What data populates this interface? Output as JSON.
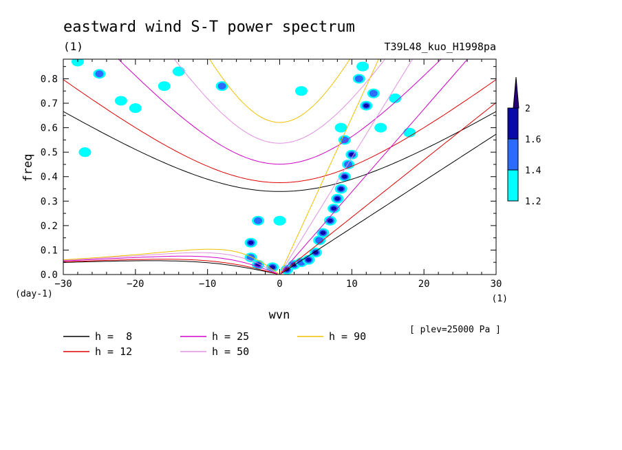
{
  "chart_data": {
    "type": "heatmap",
    "title": "eastward wind S-T power spectrum",
    "subtitle": "(1)",
    "run_label": "T39L48_kuo_H1998pa",
    "xlabel": "wvn",
    "ylabel": "freq",
    "x_unit": "(1)",
    "y_unit": "(day-1)",
    "level_note": "[ plev=25000 Pa ]",
    "xlim": [
      -30,
      30
    ],
    "ylim": [
      0,
      0.88
    ],
    "x_ticks": [
      -30,
      -20,
      -10,
      0,
      10,
      20,
      30
    ],
    "y_ticks": [
      0.0,
      0.1,
      0.2,
      0.3,
      0.4,
      0.5,
      0.6,
      0.7,
      0.8
    ],
    "grid": false,
    "colorbar": {
      "levels": [
        "1.2",
        "1.4",
        "1.6",
        "2"
      ],
      "colors": [
        "#00ffff",
        "#2b6cff",
        "#0a0aa8",
        "#2a007a"
      ]
    },
    "legend": {
      "placement": "bottom",
      "entries": [
        {
          "label": "h =  8",
          "h": 8,
          "color": "#000000"
        },
        {
          "label": "h = 12",
          "h": 12,
          "color": "#e00000"
        },
        {
          "label": "h = 25",
          "h": 25,
          "color": "#d000c8"
        },
        {
          "label": "h = 50",
          "h": 50,
          "color": "#e090e0"
        },
        {
          "label": "h = 90",
          "h": 90,
          "color": "#f0c000"
        }
      ]
    },
    "dispersion_curves": {
      "description": "equatorial wave dispersion curves (Kelvin, inertio-gravity, Rossby)",
      "equivalent_depths_m": [
        8,
        12,
        25,
        50,
        90
      ]
    },
    "power_blobs": [
      {
        "x": 1,
        "y": 0.02,
        "level": 3
      },
      {
        "x": 2,
        "y": 0.04,
        "level": 3
      },
      {
        "x": 3,
        "y": 0.05,
        "level": 2
      },
      {
        "x": 4,
        "y": 0.06,
        "level": 3
      },
      {
        "x": 5,
        "y": 0.09,
        "level": 3
      },
      {
        "x": 5.5,
        "y": 0.14,
        "level": 2
      },
      {
        "x": 6,
        "y": 0.17,
        "level": 3
      },
      {
        "x": 7,
        "y": 0.22,
        "level": 3
      },
      {
        "x": 7.5,
        "y": 0.27,
        "level": 3
      },
      {
        "x": 8,
        "y": 0.31,
        "level": 3
      },
      {
        "x": 8.5,
        "y": 0.35,
        "level": 3
      },
      {
        "x": 9,
        "y": 0.4,
        "level": 3
      },
      {
        "x": 9.5,
        "y": 0.45,
        "level": 2
      },
      {
        "x": 10,
        "y": 0.49,
        "level": 3
      },
      {
        "x": 9,
        "y": 0.55,
        "level": 2
      },
      {
        "x": 8.5,
        "y": 0.6,
        "level": 1
      },
      {
        "x": 12,
        "y": 0.69,
        "level": 3
      },
      {
        "x": 13,
        "y": 0.74,
        "level": 2
      },
      {
        "x": 11,
        "y": 0.8,
        "level": 2
      },
      {
        "x": 11.5,
        "y": 0.85,
        "level": 1
      },
      {
        "x": -1,
        "y": 0.03,
        "level": 3
      },
      {
        "x": -3,
        "y": 0.04,
        "level": 3
      },
      {
        "x": -4,
        "y": 0.07,
        "level": 2
      },
      {
        "x": -4,
        "y": 0.13,
        "level": 3
      },
      {
        "x": -3,
        "y": 0.22,
        "level": 2
      },
      {
        "x": 0,
        "y": 0.22,
        "level": 1
      },
      {
        "x": -25,
        "y": 0.82,
        "level": 2
      },
      {
        "x": -16,
        "y": 0.77,
        "level": 1
      },
      {
        "x": -28,
        "y": 0.87,
        "level": 1
      },
      {
        "x": -8,
        "y": 0.77,
        "level": 2
      },
      {
        "x": -22,
        "y": 0.71,
        "level": 1
      },
      {
        "x": -14,
        "y": 0.83,
        "level": 1
      },
      {
        "x": 3,
        "y": 0.75,
        "level": 1
      },
      {
        "x": -20,
        "y": 0.68,
        "level": 1
      },
      {
        "x": -27,
        "y": 0.5,
        "level": 1
      },
      {
        "x": 16,
        "y": 0.72,
        "level": 1
      },
      {
        "x": 18,
        "y": 0.58,
        "level": 1
      },
      {
        "x": 14,
        "y": 0.6,
        "level": 1
      }
    ]
  }
}
